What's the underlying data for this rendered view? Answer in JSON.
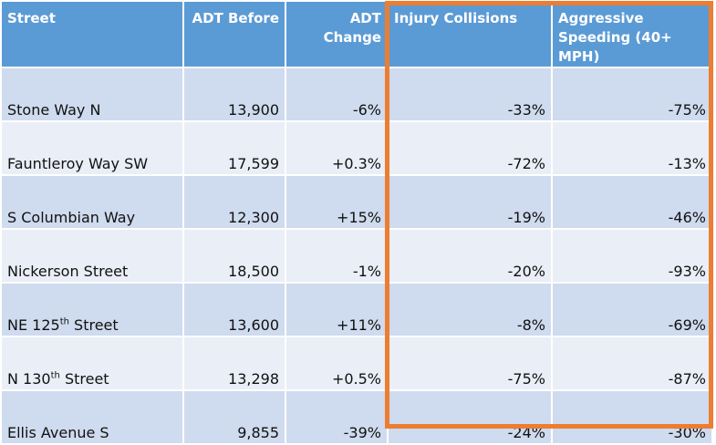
{
  "table": {
    "header": [
      "Street",
      "ADT Before",
      "ADT Change",
      "Injury Collisions",
      "Aggressive Speeding (40+ MPH)"
    ],
    "rows": [
      [
        "Stone Way N",
        "13,900",
        "-6%",
        "-33%",
        "-75%"
      ],
      [
        "Fauntleroy Way SW",
        "17,599",
        "+0.3%",
        "-72%",
        "-13%"
      ],
      [
        "S Columbian Way",
        "12,300",
        "+15%",
        "-19%",
        "-46%"
      ],
      [
        "Nickerson Street",
        "18,500",
        "-1%",
        "-20%",
        "-93%"
      ],
      [
        [
          "NE 125",
          "th",
          " Street"
        ],
        "13,600",
        "+11%",
        "-8%",
        "-69%"
      ],
      [
        [
          "N 130",
          "th",
          " Street"
        ],
        "13,298",
        "+0.5%",
        "-75%",
        "-87%"
      ],
      [
        "Ellis Avenue S",
        "9,855",
        "-39%",
        "-24%",
        "-30%"
      ]
    ]
  }
}
